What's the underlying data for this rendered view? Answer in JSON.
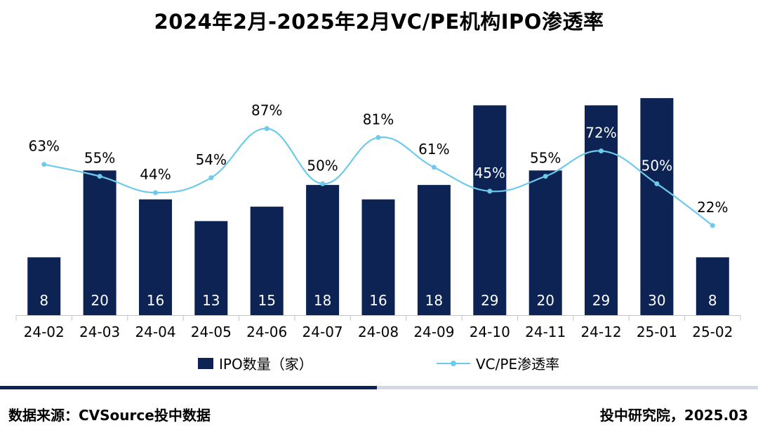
{
  "title": "2024年2月-2025年2月VC/PE机构IPO渗透率",
  "colors": {
    "bar": "#0c2354",
    "line": "#6dcaec",
    "bar_label": "#ffffff",
    "axis": "#c4c4c4",
    "divider_dark": "#0c2354",
    "divider_light": "#d3d8e3"
  },
  "chart_data": {
    "type": "bar+line",
    "categories": [
      "24-02",
      "24-03",
      "24-04",
      "24-05",
      "24-06",
      "24-07",
      "24-08",
      "24-09",
      "24-10",
      "24-11",
      "24-12",
      "25-01",
      "25-02"
    ],
    "series": [
      {
        "name": "IPO数量（家）",
        "type": "bar",
        "values": [
          8,
          20,
          16,
          13,
          15,
          18,
          16,
          18,
          29,
          20,
          29,
          30,
          8
        ],
        "labels": [
          "8",
          "20",
          "16",
          "13",
          "15",
          "18",
          "16",
          "18",
          "29",
          "20",
          "29",
          "30",
          "8"
        ]
      },
      {
        "name": "VC/PE渗透率",
        "type": "line",
        "smooth": true,
        "values": [
          63,
          55,
          44,
          54,
          87,
          50,
          81,
          61,
          45,
          55,
          72,
          50,
          22
        ],
        "labels": [
          "63%",
          "55%",
          "44%",
          "54%",
          "87%",
          "50%",
          "81%",
          "61%",
          "45%",
          "55%",
          "72%",
          "50%",
          "22%"
        ]
      }
    ],
    "legend_position": "bottom",
    "grid": false
  },
  "footer": {
    "source": "数据来源：CVSource投中数据",
    "org": "投中研究院，2025.03"
  }
}
